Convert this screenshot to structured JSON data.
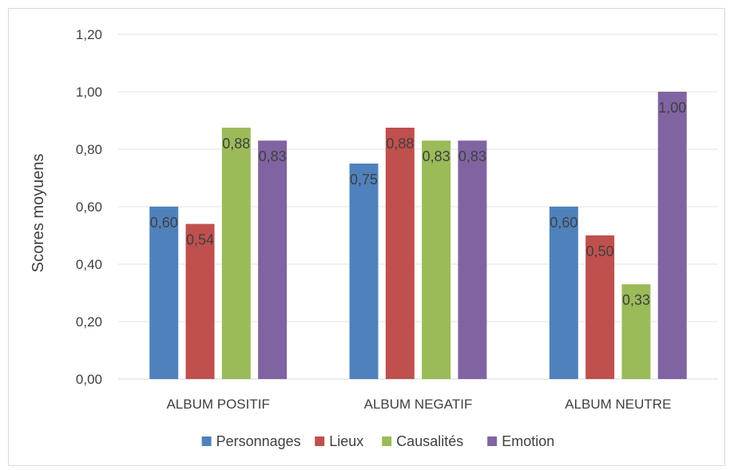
{
  "chart_data": {
    "type": "bar",
    "title": "",
    "xlabel": "",
    "ylabel": "Scores moyuens",
    "ylim": [
      0,
      1.2
    ],
    "yticks": [
      "0,00",
      "0,20",
      "0,40",
      "0,60",
      "0,80",
      "1,00",
      "1,20"
    ],
    "grid": true,
    "legend_position": "bottom",
    "categories": [
      "ALBUM POSITIF",
      "ALBUM NEGATIF",
      "ALBUM NEUTRE"
    ],
    "series": [
      {
        "name": "Personnages",
        "color": "#4f81bd",
        "values": [
          0.6,
          0.75,
          0.6
        ],
        "labels": [
          "0,60",
          "0,75",
          "0,60"
        ]
      },
      {
        "name": "Lieux",
        "color": "#c0504d",
        "values": [
          0.54,
          0.875,
          0.5
        ],
        "labels": [
          "0,54",
          "0,88",
          "0,50"
        ]
      },
      {
        "name": "Causalités",
        "color": "#9bbb59",
        "values": [
          0.875,
          0.83,
          0.33
        ],
        "labels": [
          "0,88",
          "0,83",
          "0,33"
        ]
      },
      {
        "name": "Emotion",
        "color": "#8064a2",
        "values": [
          0.83,
          0.83,
          1.0
        ],
        "labels": [
          "0,83",
          "0,83",
          "1,00"
        ]
      }
    ]
  }
}
